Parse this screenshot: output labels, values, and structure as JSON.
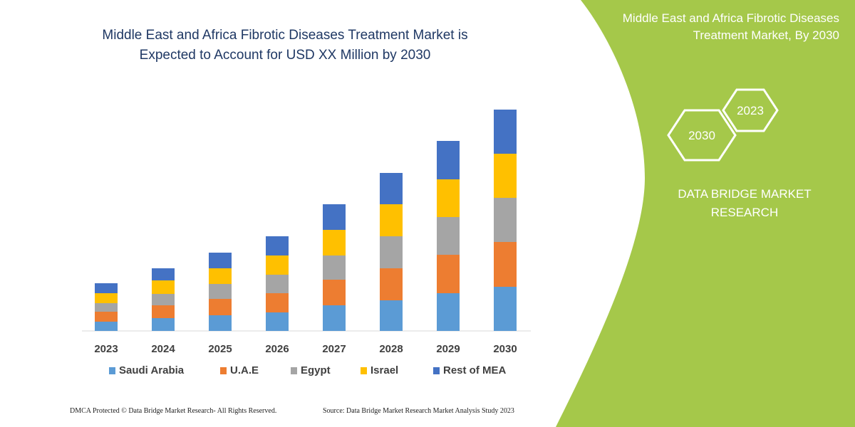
{
  "title": {
    "line1": "Middle East and Africa Fibrotic Diseases Treatment Market is",
    "line2": "Expected to Account for USD XX Million by 2030"
  },
  "panel": {
    "title_line1": "Middle East and Africa Fibrotic Diseases",
    "title_line2": "Treatment Market, By 2030",
    "hex_2023": "2023",
    "hex_2030": "2030",
    "brand_line1": "DATA BRIDGE MARKET",
    "brand_line2": "RESEARCH",
    "color": "#a5c84a"
  },
  "footer": {
    "left": "DMCA Protected © Data Bridge Market Research-  All Rights Reserved.",
    "right": "Source: Data Bridge Market Research  Market Analysis Study 2023"
  },
  "chart_data": {
    "type": "bar",
    "stacked": true,
    "categories": [
      "2023",
      "2024",
      "2025",
      "2026",
      "2027",
      "2028",
      "2029",
      "2030"
    ],
    "series": [
      {
        "name": "Saudi Arabia",
        "color": "#5b9bd5",
        "values": [
          13,
          18,
          22,
          26,
          36,
          43,
          53,
          62
        ]
      },
      {
        "name": "U.A.E",
        "color": "#ed7d31",
        "values": [
          14,
          18,
          23,
          27,
          36,
          45,
          54,
          63
        ]
      },
      {
        "name": "Egypt",
        "color": "#a5a5a5",
        "values": [
          12,
          16,
          21,
          26,
          34,
          45,
          53,
          62
        ]
      },
      {
        "name": "Israel",
        "color": "#ffc000",
        "values": [
          14,
          19,
          22,
          27,
          36,
          45,
          53,
          62
        ]
      },
      {
        "name": "Rest of MEA",
        "color": "#4472c4",
        "values": [
          14,
          17,
          22,
          27,
          36,
          44,
          54,
          62
        ]
      }
    ],
    "legend_position": "bottom",
    "grid": false,
    "y_axis_shown": false
  }
}
